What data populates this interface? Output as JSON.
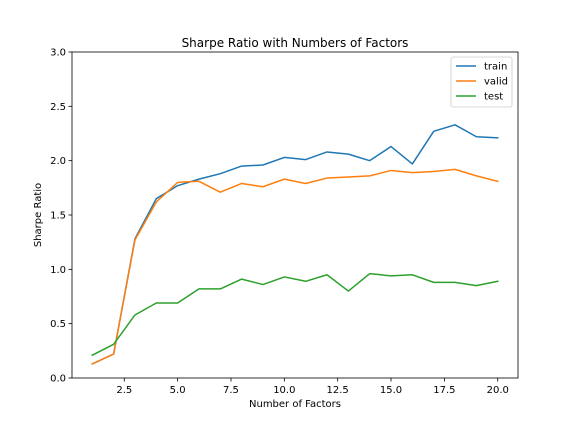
{
  "chart_data": {
    "type": "line",
    "title": "Sharpe Ratio with Numbers of Factors",
    "xlabel": "Number of Factors",
    "ylabel": "Sharpe Ratio",
    "xlim": [
      0.05,
      20.95
    ],
    "ylim": [
      0.0,
      3.0
    ],
    "xticks": [
      2.5,
      5.0,
      7.5,
      10.0,
      12.5,
      15.0,
      17.5,
      20.0
    ],
    "xtick_labels": [
      "2.5",
      "5.0",
      "7.5",
      "10.0",
      "12.5",
      "15.0",
      "17.5",
      "20.0"
    ],
    "yticks": [
      0.0,
      0.5,
      1.0,
      1.5,
      2.0,
      2.5,
      3.0
    ],
    "ytick_labels": [
      "0.0",
      "0.5",
      "1.0",
      "1.5",
      "2.0",
      "2.5",
      "3.0"
    ],
    "grid": false,
    "legend_position": "top-right",
    "x": [
      1,
      2,
      3,
      4,
      5,
      6,
      7,
      8,
      9,
      10,
      11,
      12,
      13,
      14,
      15,
      16,
      17,
      18,
      19,
      20
    ],
    "series": [
      {
        "name": "train",
        "color": "#1f77b4",
        "values": [
          0.13,
          0.22,
          1.28,
          1.65,
          1.77,
          1.83,
          1.88,
          1.95,
          1.96,
          2.03,
          2.01,
          2.08,
          2.06,
          2.0,
          2.13,
          1.97,
          2.27,
          2.33,
          2.22,
          2.21
        ]
      },
      {
        "name": "valid",
        "color": "#ff7f0e",
        "values": [
          0.13,
          0.22,
          1.27,
          1.62,
          1.8,
          1.81,
          1.71,
          1.79,
          1.76,
          1.83,
          1.79,
          1.84,
          1.85,
          1.86,
          1.91,
          1.89,
          1.9,
          1.92,
          1.86,
          1.81
        ]
      },
      {
        "name": "test",
        "color": "#2ca02c",
        "values": [
          0.21,
          0.31,
          0.58,
          0.69,
          0.69,
          0.82,
          0.82,
          0.91,
          0.86,
          0.93,
          0.89,
          0.95,
          0.8,
          0.96,
          0.94,
          0.95,
          0.88,
          0.88,
          0.85,
          0.89
        ]
      }
    ]
  }
}
